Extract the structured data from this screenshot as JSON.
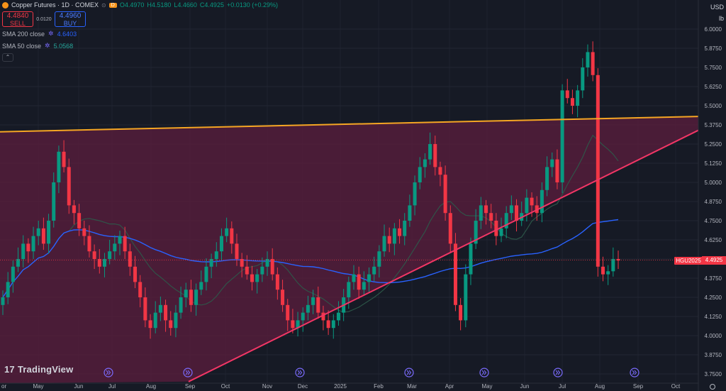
{
  "header": {
    "symbol": "Copper Futures · 1D · COMEX",
    "open": "O4.4970",
    "high": "H4.5180",
    "low": "L4.4660",
    "close": "C4.4925",
    "change": "+0.0130 (+0.29%)",
    "d_badge": "D"
  },
  "trade": {
    "sell_price": "4.4840",
    "sell_label": "SELL",
    "spread": "0.0120",
    "buy_price": "4.4960",
    "buy_label": "BUY"
  },
  "indicators": [
    {
      "label": "SMA 200 close",
      "value": "4.6403",
      "color": "#2962ff"
    },
    {
      "label": "SMA 50 close",
      "value": "5.0568",
      "color": "#26a69a"
    }
  ],
  "currency": "USD",
  "unit": "lb",
  "logo_text": "TradingView",
  "last_price_tag": {
    "symbol": "HGU2025",
    "value": "4.4925"
  },
  "colors": {
    "up": "#089981",
    "down": "#f23645",
    "trendline_upper": "#f5a623",
    "trendline_lower": "#f23665",
    "zone_fill": "#5c1e3d",
    "sma200": "#2962ff",
    "sma50": "#2e5a4a"
  },
  "chart_data": {
    "type": "candlestick",
    "ylim": [
      3.72,
      6.02
    ],
    "y_ticks": [
      "6.0000",
      "5.8750",
      "5.7500",
      "5.6250",
      "5.5000",
      "5.3750",
      "5.2500",
      "5.1250",
      "5.0000",
      "4.8750",
      "4.7500",
      "4.6250",
      "4.5000",
      "4.3750",
      "4.2500",
      "4.1250",
      "4.0000",
      "3.8750",
      "3.7500"
    ],
    "x_ticks": [
      "May",
      "Jun",
      "Jul",
      "Aug",
      "Sep",
      "Oct",
      "Nov",
      "Dec",
      "2025",
      "Feb",
      "Mar",
      "Apr",
      "May",
      "Jun",
      "Jul",
      "Aug",
      "Sep",
      "Oct"
    ],
    "x_tick_labels_leading": "or",
    "trendlines": [
      {
        "name": "upper",
        "from": [
          0,
          5.33
        ],
        "to": [
          1,
          5.43
        ]
      },
      {
        "name": "lower",
        "from": [
          0.27,
          3.7
        ],
        "to": [
          1,
          5.34
        ]
      }
    ],
    "closes_key": [
      4.25,
      4.35,
      4.45,
      4.5,
      4.6,
      4.55,
      4.65,
      4.7,
      4.6,
      4.75,
      5.0,
      5.2,
      5.1,
      4.85,
      4.8,
      4.7,
      4.65,
      4.55,
      4.5,
      4.45,
      4.5,
      4.55,
      4.6,
      4.65,
      4.55,
      4.45,
      4.35,
      4.25,
      4.1,
      4.05,
      4.15,
      4.2,
      4.1,
      4.05,
      4.15,
      4.25,
      4.3,
      4.2,
      4.3,
      4.35,
      4.45,
      4.5,
      4.55,
      4.65,
      4.7,
      4.6,
      4.5,
      4.45,
      4.4,
      4.35,
      4.4,
      4.45,
      4.5,
      4.4,
      4.3,
      4.2,
      4.1,
      4.05,
      4.1,
      4.15,
      4.2,
      4.25,
      4.15,
      4.1,
      4.05,
      4.1,
      4.15,
      4.25,
      4.35,
      4.4,
      4.3,
      4.35,
      4.4,
      4.45,
      4.55,
      4.65,
      4.6,
      4.7,
      4.65,
      4.75,
      4.85,
      5.0,
      5.1,
      5.15,
      5.25,
      5.1,
      5.05,
      4.8,
      4.6,
      4.2,
      4.1,
      4.4,
      4.6,
      4.75,
      4.85,
      4.8,
      4.75,
      4.65,
      4.7,
      4.8,
      4.85,
      4.75,
      4.8,
      4.9,
      4.85,
      4.8,
      4.95,
      5.1,
      5.15,
      5.0,
      5.6,
      5.55,
      5.5,
      5.6,
      5.75,
      5.85,
      5.7,
      4.45,
      4.4,
      4.42,
      4.5,
      4.49
    ]
  }
}
